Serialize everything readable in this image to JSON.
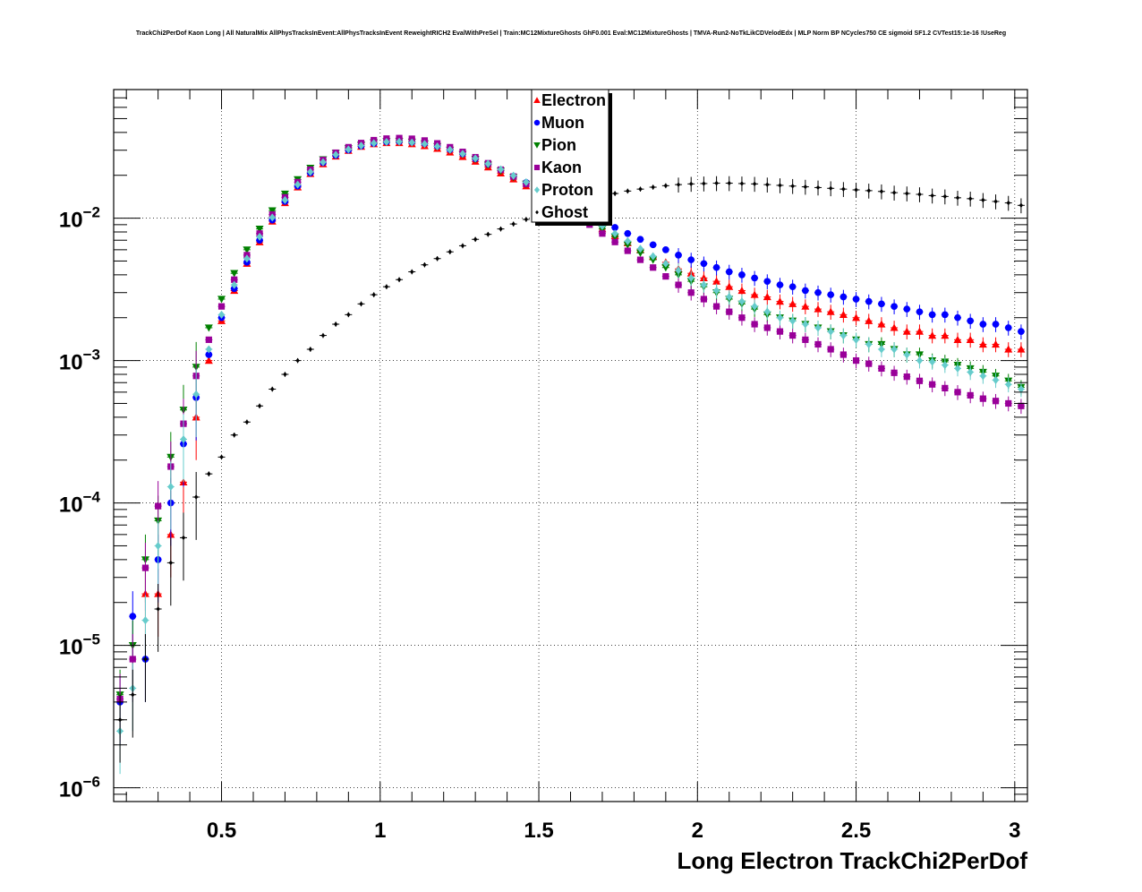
{
  "title": "TrackChi2PerDof Kaon Long | All NaturalMix AllPhysTracksInEvent:AllPhysTracksInEvent ReweightRICH2 EvalWithPreSel | Train:MC12MixtureGhosts GhF0.001 Eval:MC12MixtureGhosts | TMVA-Run2-NoTkLikCDVelodEdx | MLP Norm BP NCycles750 CE sigmoid SF1.2 CVTest15:1e-16 !UseReg",
  "chart_data": {
    "type": "scatter",
    "xlabel": "Long Electron TrackChi2PerDof",
    "ylabel": "",
    "xlim": [
      0.16,
      3.04
    ],
    "ylim": [
      8e-07,
      0.08
    ],
    "y_scale": "log",
    "grid": true,
    "legend_position": "top-center",
    "x_ticks": [
      {
        "value": 0.5,
        "label": "0.5"
      },
      {
        "value": 1,
        "label": "1"
      },
      {
        "value": 1.5,
        "label": "1.5"
      },
      {
        "value": 2,
        "label": "2"
      },
      {
        "value": 2.5,
        "label": "2.5"
      },
      {
        "value": 3,
        "label": "3"
      }
    ],
    "y_ticks": [
      {
        "value": 1e-06,
        "base": "10",
        "exp": "−6"
      },
      {
        "value": 1e-05,
        "base": "10",
        "exp": "−5"
      },
      {
        "value": 0.0001,
        "base": "10",
        "exp": "−4"
      },
      {
        "value": 0.001,
        "base": "10",
        "exp": "−3"
      },
      {
        "value": 0.01,
        "base": "10",
        "exp": "−2"
      }
    ],
    "series": [
      {
        "name": "Electron",
        "color": "#ff0000",
        "marker": "triangle-up",
        "x": [
          0.26,
          0.3,
          0.34,
          0.38,
          0.42,
          0.46,
          0.5,
          0.54,
          0.58,
          0.62,
          0.66,
          0.7,
          0.74,
          0.78,
          0.82,
          0.86,
          0.9,
          0.94,
          0.98,
          1.02,
          1.06,
          1.1,
          1.14,
          1.18,
          1.22,
          1.26,
          1.3,
          1.34,
          1.38,
          1.42,
          1.46,
          1.5,
          1.54,
          1.58,
          1.62,
          1.66,
          1.7,
          1.74,
          1.78,
          1.82,
          1.86,
          1.9,
          1.94,
          1.98,
          2.02,
          2.06,
          2.1,
          2.14,
          2.18,
          2.22,
          2.26,
          2.3,
          2.34,
          2.38,
          2.42,
          2.46,
          2.5,
          2.54,
          2.58,
          2.62,
          2.66,
          2.7,
          2.74,
          2.78,
          2.82,
          2.86,
          2.9,
          2.94,
          2.98,
          3.02
        ],
        "y": [
          2.3e-05,
          2.3e-05,
          6e-05,
          0.00014,
          0.0004,
          0.001,
          0.0019,
          0.0031,
          0.0048,
          0.0068,
          0.0095,
          0.0128,
          0.0165,
          0.0205,
          0.024,
          0.0272,
          0.0298,
          0.0318,
          0.0332,
          0.0338,
          0.0338,
          0.0332,
          0.0322,
          0.0308,
          0.029,
          0.027,
          0.025,
          0.0228,
          0.0207,
          0.0188,
          0.0168,
          0.015,
          0.0134,
          0.012,
          0.0106,
          0.0094,
          0.0084,
          0.0075,
          0.0067,
          0.006,
          0.0054,
          0.0049,
          0.0044,
          0.0041,
          0.0038,
          0.0036,
          0.0033,
          0.0031,
          0.0029,
          0.0028,
          0.0026,
          0.0025,
          0.0024,
          0.0023,
          0.0022,
          0.0021,
          0.002,
          0.0019,
          0.0018,
          0.0017,
          0.0016,
          0.0016,
          0.0015,
          0.0015,
          0.0014,
          0.0014,
          0.0013,
          0.0013,
          0.0012,
          0.0012
        ]
      },
      {
        "name": "Muon",
        "color": "#0000ff",
        "marker": "circle",
        "x": [
          0.18,
          0.22,
          0.26,
          0.3,
          0.34,
          0.38,
          0.42,
          0.46,
          0.5,
          0.54,
          0.58,
          0.62,
          0.66,
          0.7,
          0.74,
          0.78,
          0.82,
          0.86,
          0.9,
          0.94,
          0.98,
          1.02,
          1.06,
          1.1,
          1.14,
          1.18,
          1.22,
          1.26,
          1.3,
          1.34,
          1.38,
          1.42,
          1.46,
          1.5,
          1.54,
          1.58,
          1.62,
          1.66,
          1.7,
          1.74,
          1.78,
          1.82,
          1.86,
          1.9,
          1.94,
          1.98,
          2.02,
          2.06,
          2.1,
          2.14,
          2.18,
          2.22,
          2.26,
          2.3,
          2.34,
          2.38,
          2.42,
          2.46,
          2.5,
          2.54,
          2.58,
          2.62,
          2.66,
          2.7,
          2.74,
          2.78,
          2.82,
          2.86,
          2.9,
          2.94,
          2.98,
          3.02
        ],
        "y": [
          4e-06,
          1.6e-05,
          8e-06,
          4e-05,
          0.0001,
          0.00026,
          0.00055,
          0.0011,
          0.002,
          0.0032,
          0.0049,
          0.007,
          0.0097,
          0.0131,
          0.0168,
          0.0208,
          0.0245,
          0.0276,
          0.0301,
          0.0321,
          0.0335,
          0.0343,
          0.0346,
          0.0342,
          0.0334,
          0.032,
          0.0303,
          0.0283,
          0.0261,
          0.0239,
          0.0218,
          0.0197,
          0.0178,
          0.016,
          0.0144,
          0.013,
          0.0117,
          0.0105,
          0.0095,
          0.0086,
          0.0078,
          0.0071,
          0.0065,
          0.006,
          0.0055,
          0.0051,
          0.0048,
          0.0045,
          0.0042,
          0.004,
          0.0038,
          0.0036,
          0.0034,
          0.0033,
          0.0031,
          0.003,
          0.0029,
          0.0028,
          0.0027,
          0.0026,
          0.0025,
          0.0024,
          0.0023,
          0.0022,
          0.0021,
          0.0021,
          0.002,
          0.0019,
          0.0018,
          0.0018,
          0.0017,
          0.0016
        ]
      },
      {
        "name": "Pion",
        "color": "#008000",
        "marker": "triangle-down",
        "x": [
          0.18,
          0.22,
          0.26,
          0.3,
          0.34,
          0.38,
          0.42,
          0.46,
          0.5,
          0.54,
          0.58,
          0.62,
          0.66,
          0.7,
          0.74,
          0.78,
          0.82,
          0.86,
          0.9,
          0.94,
          0.98,
          1.02,
          1.06,
          1.1,
          1.14,
          1.18,
          1.22,
          1.26,
          1.3,
          1.34,
          1.38,
          1.42,
          1.46,
          1.5,
          1.54,
          1.58,
          1.62,
          1.66,
          1.7,
          1.74,
          1.78,
          1.82,
          1.86,
          1.9,
          1.94,
          1.98,
          2.02,
          2.06,
          2.1,
          2.14,
          2.18,
          2.22,
          2.26,
          2.3,
          2.34,
          2.38,
          2.42,
          2.46,
          2.5,
          2.54,
          2.58,
          2.62,
          2.66,
          2.7,
          2.74,
          2.78,
          2.82,
          2.86,
          2.9,
          2.94,
          2.98,
          3.02
        ],
        "y": [
          4.5e-06,
          1e-05,
          4e-05,
          7.5e-05,
          0.00021,
          0.00045,
          0.0009,
          0.0017,
          0.0027,
          0.0041,
          0.006,
          0.0084,
          0.0113,
          0.0148,
          0.0187,
          0.0225,
          0.0258,
          0.0286,
          0.0309,
          0.0327,
          0.034,
          0.0346,
          0.0347,
          0.0342,
          0.0333,
          0.0319,
          0.0301,
          0.0281,
          0.026,
          0.0237,
          0.0215,
          0.0194,
          0.0174,
          0.0155,
          0.0138,
          0.0122,
          0.0108,
          0.0095,
          0.0084,
          0.0074,
          0.0065,
          0.0057,
          0.0051,
          0.0045,
          0.004,
          0.0036,
          0.0033,
          0.003,
          0.0027,
          0.0025,
          0.0023,
          0.0021,
          0.002,
          0.0019,
          0.0018,
          0.0017,
          0.0016,
          0.0015,
          0.0014,
          0.0013,
          0.0013,
          0.0012,
          0.0011,
          0.0011,
          0.001,
          0.00098,
          0.00093,
          0.00088,
          0.00083,
          0.00078,
          0.00072,
          0.00065
        ]
      },
      {
        "name": "Kaon",
        "color": "#990099",
        "marker": "square",
        "x": [
          0.18,
          0.22,
          0.26,
          0.3,
          0.34,
          0.38,
          0.42,
          0.46,
          0.5,
          0.54,
          0.58,
          0.62,
          0.66,
          0.7,
          0.74,
          0.78,
          0.82,
          0.86,
          0.9,
          0.94,
          0.98,
          1.02,
          1.06,
          1.1,
          1.14,
          1.18,
          1.22,
          1.26,
          1.3,
          1.34,
          1.38,
          1.42,
          1.46,
          1.5,
          1.54,
          1.58,
          1.62,
          1.66,
          1.7,
          1.74,
          1.78,
          1.82,
          1.86,
          1.9,
          1.94,
          1.98,
          2.02,
          2.06,
          2.1,
          2.14,
          2.18,
          2.22,
          2.26,
          2.3,
          2.34,
          2.38,
          2.42,
          2.46,
          2.5,
          2.54,
          2.58,
          2.62,
          2.66,
          2.7,
          2.74,
          2.78,
          2.82,
          2.86,
          2.9,
          2.94,
          2.98,
          3.02
        ],
        "y": [
          4.2e-06,
          8e-06,
          3.5e-05,
          9.5e-05,
          0.00018,
          0.00036,
          0.00078,
          0.0014,
          0.0024,
          0.0037,
          0.0055,
          0.0078,
          0.0106,
          0.014,
          0.0179,
          0.0219,
          0.0256,
          0.0288,
          0.0315,
          0.0337,
          0.0353,
          0.0362,
          0.0365,
          0.0361,
          0.0351,
          0.0335,
          0.0315,
          0.0292,
          0.0268,
          0.0243,
          0.0219,
          0.0196,
          0.0174,
          0.0154,
          0.0136,
          0.0119,
          0.0104,
          0.009,
          0.0078,
          0.0068,
          0.0059,
          0.0051,
          0.0045,
          0.0039,
          0.0034,
          0.003,
          0.0027,
          0.0024,
          0.0022,
          0.002,
          0.0018,
          0.0017,
          0.0016,
          0.0015,
          0.0014,
          0.0013,
          0.0012,
          0.0011,
          0.001,
          0.00095,
          0.00088,
          0.00082,
          0.00077,
          0.00072,
          0.00068,
          0.00064,
          0.0006,
          0.00057,
          0.00054,
          0.00052,
          0.0005,
          0.00048
        ]
      },
      {
        "name": "Proton",
        "color": "#66cccc",
        "marker": "diamond",
        "x": [
          0.18,
          0.22,
          0.26,
          0.3,
          0.34,
          0.38,
          0.42,
          0.46,
          0.5,
          0.54,
          0.58,
          0.62,
          0.66,
          0.7,
          0.74,
          0.78,
          0.82,
          0.86,
          0.9,
          0.94,
          0.98,
          1.02,
          1.06,
          1.1,
          1.14,
          1.18,
          1.22,
          1.26,
          1.3,
          1.34,
          1.38,
          1.42,
          1.46,
          1.5,
          1.54,
          1.58,
          1.62,
          1.66,
          1.7,
          1.74,
          1.78,
          1.82,
          1.86,
          1.9,
          1.94,
          1.98,
          2.02,
          2.06,
          2.1,
          2.14,
          2.18,
          2.22,
          2.26,
          2.3,
          2.34,
          2.38,
          2.42,
          2.46,
          2.5,
          2.54,
          2.58,
          2.62,
          2.66,
          2.7,
          2.74,
          2.78,
          2.82,
          2.86,
          2.9,
          2.94,
          2.98,
          3.02
        ],
        "y": [
          2.5e-06,
          5e-06,
          1.5e-05,
          5e-05,
          0.00013,
          0.00028,
          0.00058,
          0.0012,
          0.0021,
          0.0034,
          0.0052,
          0.0074,
          0.0101,
          0.0134,
          0.0172,
          0.0211,
          0.0247,
          0.0279,
          0.0304,
          0.0323,
          0.0336,
          0.0343,
          0.0344,
          0.034,
          0.0332,
          0.0319,
          0.0302,
          0.0283,
          0.0263,
          0.0241,
          0.022,
          0.0199,
          0.0179,
          0.016,
          0.0143,
          0.0127,
          0.0113,
          0.01,
          0.0088,
          0.0078,
          0.0069,
          0.0061,
          0.0054,
          0.0048,
          0.0043,
          0.0038,
          0.0034,
          0.0031,
          0.0028,
          0.0026,
          0.0024,
          0.0022,
          0.002,
          0.0019,
          0.0018,
          0.0017,
          0.0016,
          0.0015,
          0.0014,
          0.0013,
          0.0012,
          0.0012,
          0.0011,
          0.001,
          0.00098,
          0.00093,
          0.00088,
          0.00083,
          0.00078,
          0.00073,
          0.00068,
          0.00063
        ]
      },
      {
        "name": "Ghost",
        "color": "#000000",
        "marker": "small-diamond",
        "x": [
          0.18,
          0.22,
          0.26,
          0.3,
          0.34,
          0.38,
          0.42,
          0.46,
          0.5,
          0.54,
          0.58,
          0.62,
          0.66,
          0.7,
          0.74,
          0.78,
          0.82,
          0.86,
          0.9,
          0.94,
          0.98,
          1.02,
          1.06,
          1.1,
          1.14,
          1.18,
          1.22,
          1.26,
          1.3,
          1.34,
          1.38,
          1.42,
          1.46,
          1.5,
          1.54,
          1.58,
          1.62,
          1.66,
          1.7,
          1.74,
          1.78,
          1.82,
          1.86,
          1.9,
          1.94,
          1.98,
          2.02,
          2.06,
          2.1,
          2.14,
          2.18,
          2.22,
          2.26,
          2.3,
          2.34,
          2.38,
          2.42,
          2.46,
          2.5,
          2.54,
          2.58,
          2.62,
          2.66,
          2.7,
          2.74,
          2.78,
          2.82,
          2.86,
          2.9,
          2.94,
          2.98,
          3.02
        ],
        "y": [
          3e-06,
          4.5e-06,
          8e-06,
          1.8e-05,
          3.8e-05,
          5.7e-05,
          0.00011,
          0.00016,
          0.00021,
          0.0003,
          0.00037,
          0.00048,
          0.00063,
          0.0008,
          0.001,
          0.0012,
          0.0015,
          0.0018,
          0.0021,
          0.0025,
          0.0029,
          0.0033,
          0.0037,
          0.0042,
          0.0047,
          0.0052,
          0.0058,
          0.0064,
          0.0071,
          0.0077,
          0.0084,
          0.0091,
          0.0098,
          0.0105,
          0.0113,
          0.012,
          0.0128,
          0.0135,
          0.0142,
          0.0149,
          0.0155,
          0.016,
          0.0165,
          0.0169,
          0.0172,
          0.0174,
          0.0175,
          0.0176,
          0.0176,
          0.0175,
          0.0174,
          0.0172,
          0.017,
          0.0168,
          0.0166,
          0.0164,
          0.0162,
          0.016,
          0.0158,
          0.0156,
          0.0154,
          0.0151,
          0.0149,
          0.0147,
          0.0144,
          0.0142,
          0.0139,
          0.0137,
          0.0134,
          0.0131,
          0.0128,
          0.0123
        ]
      }
    ]
  }
}
